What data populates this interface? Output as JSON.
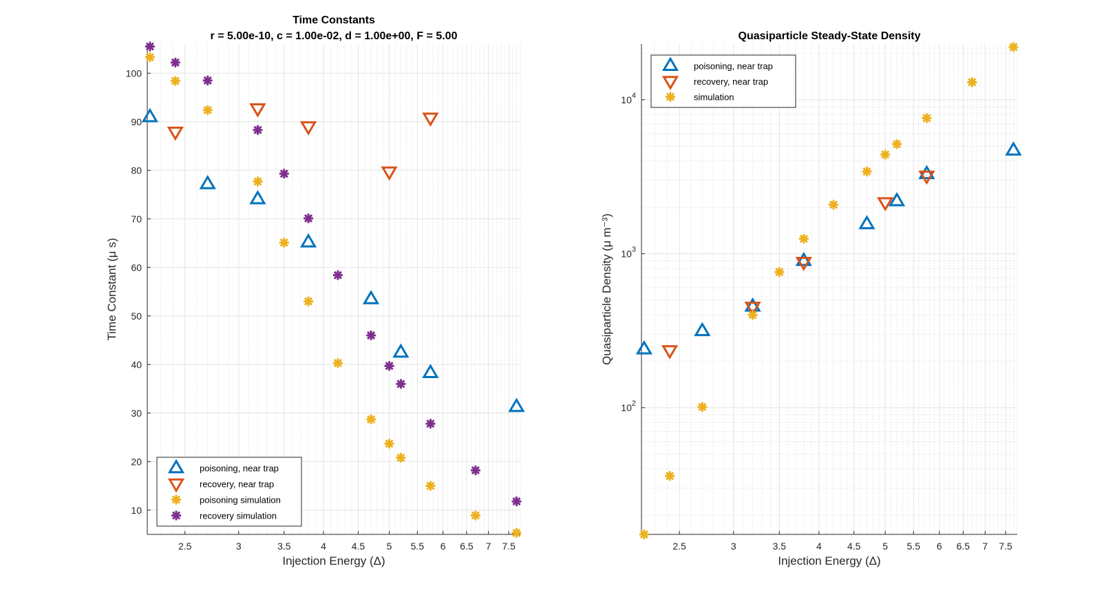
{
  "figure": {
    "background": "#ffffff"
  },
  "chart_data": [
    {
      "type": "scatter",
      "title": "Time Constants",
      "subtitle": "r = 5.00e-10, c = 1.00e-02, d = 1.00e+00, F = 5.00",
      "xlabel": "Injection Energy (Δ)",
      "ylabel": "Time Constant (μ s)",
      "xscale": "log",
      "yscale": "linear",
      "xlim": [
        2.2,
        7.8
      ],
      "ylim": [
        5,
        106
      ],
      "xticks": [
        2.5,
        3,
        3.5,
        4,
        4.5,
        5,
        5.5,
        6,
        6.5,
        7,
        7.5
      ],
      "xtick_labels": [
        "2.5",
        "3",
        "3.5",
        "4",
        "4.5",
        "5",
        "5.5",
        "6",
        "6.5",
        "7",
        "7.5"
      ],
      "yticks": [
        10,
        20,
        30,
        40,
        50,
        60,
        70,
        80,
        90,
        100
      ],
      "ytick_labels": [
        "10",
        "20",
        "30",
        "40",
        "50",
        "60",
        "70",
        "80",
        "90",
        "100"
      ],
      "grid": true,
      "legend_position": "bottom-left",
      "series": [
        {
          "name": "poisoning, near trap",
          "marker": "triangle-up",
          "color": "#0072bd",
          "x": [
            2.22,
            2.7,
            3.2,
            3.8,
            4.7,
            5.2,
            5.75,
            7.7
          ],
          "y": [
            91,
            77.2,
            74.1,
            65.2,
            53.5,
            42.5,
            38.3,
            31.3
          ]
        },
        {
          "name": "recovery, near trap",
          "marker": "triangle-down",
          "color": "#d95319",
          "x": [
            2.42,
            3.2,
            3.8,
            5.0,
            5.75
          ],
          "y": [
            87.9,
            92.7,
            89,
            79.7,
            90.8
          ]
        },
        {
          "name": "poisoning simulation",
          "marker": "asterisk",
          "color": "#edb120",
          "x": [
            2.22,
            2.42,
            2.7,
            3.2,
            3.5,
            3.8,
            4.2,
            4.7,
            5.0,
            5.2,
            5.75,
            6.7,
            7.7
          ],
          "y": [
            103.3,
            98.4,
            92.4,
            77.7,
            65.1,
            53,
            40.3,
            28.7,
            23.7,
            20.8,
            15,
            8.9,
            5.3
          ]
        },
        {
          "name": "recovery simulation",
          "marker": "asterisk",
          "color": "#7e2f8e",
          "x": [
            2.22,
            2.42,
            2.7,
            3.2,
            3.5,
            3.8,
            4.2,
            4.7,
            5.0,
            5.2,
            5.75,
            6.7,
            7.7
          ],
          "y": [
            105.5,
            102.2,
            98.5,
            88.3,
            79.3,
            70.1,
            58.4,
            46,
            39.7,
            36,
            27.8,
            18.2,
            11.8
          ]
        }
      ]
    },
    {
      "type": "scatter",
      "title": "Quasiparticle Steady-State Density",
      "xlabel": "Injection Energy (Δ)",
      "ylabel": "Quasiparticle Density (μ m⁻³)",
      "xscale": "log",
      "yscale": "log",
      "xlim": [
        2.2,
        7.8
      ],
      "ylim": [
        15,
        23000
      ],
      "xticks": [
        2.5,
        3,
        3.5,
        4,
        4.5,
        5,
        5.5,
        6,
        6.5,
        7,
        7.5
      ],
      "xtick_labels": [
        "2.5",
        "3",
        "3.5",
        "4",
        "4.5",
        "5",
        "5.5",
        "6",
        "6.5",
        "7",
        "7.5"
      ],
      "yticks": [
        100,
        1000,
        10000
      ],
      "ytick_bases": [
        "10",
        "10",
        "10"
      ],
      "ytick_exponents": [
        "2",
        "3",
        "4"
      ],
      "grid": true,
      "legend_position": "top-left",
      "series": [
        {
          "name": "poisoning, near trap",
          "marker": "triangle-up",
          "color": "#0072bd",
          "x": [
            2.22,
            2.7,
            3.2,
            3.8,
            4.7,
            5.2,
            5.75,
            7.7
          ],
          "y": [
            240,
            315,
            455,
            900,
            1560,
            2200,
            3300,
            4700
          ]
        },
        {
          "name": "recovery, near trap",
          "marker": "triangle-down",
          "color": "#d95319",
          "x": [
            2.42,
            3.2,
            3.8,
            5.0,
            5.75
          ],
          "y": [
            235,
            450,
            880,
            2150,
            3200
          ]
        },
        {
          "name": "simulation",
          "marker": "asterisk",
          "color": "#edb120",
          "x": [
            2.22,
            2.42,
            2.7,
            3.2,
            3.5,
            3.8,
            4.2,
            4.7,
            5.0,
            5.2,
            5.75,
            6.7,
            7.7
          ],
          "y": [
            15,
            36,
            101,
            400,
            760,
            1250,
            2080,
            3420,
            4400,
            5150,
            7600,
            13000,
            22000
          ]
        }
      ]
    }
  ]
}
